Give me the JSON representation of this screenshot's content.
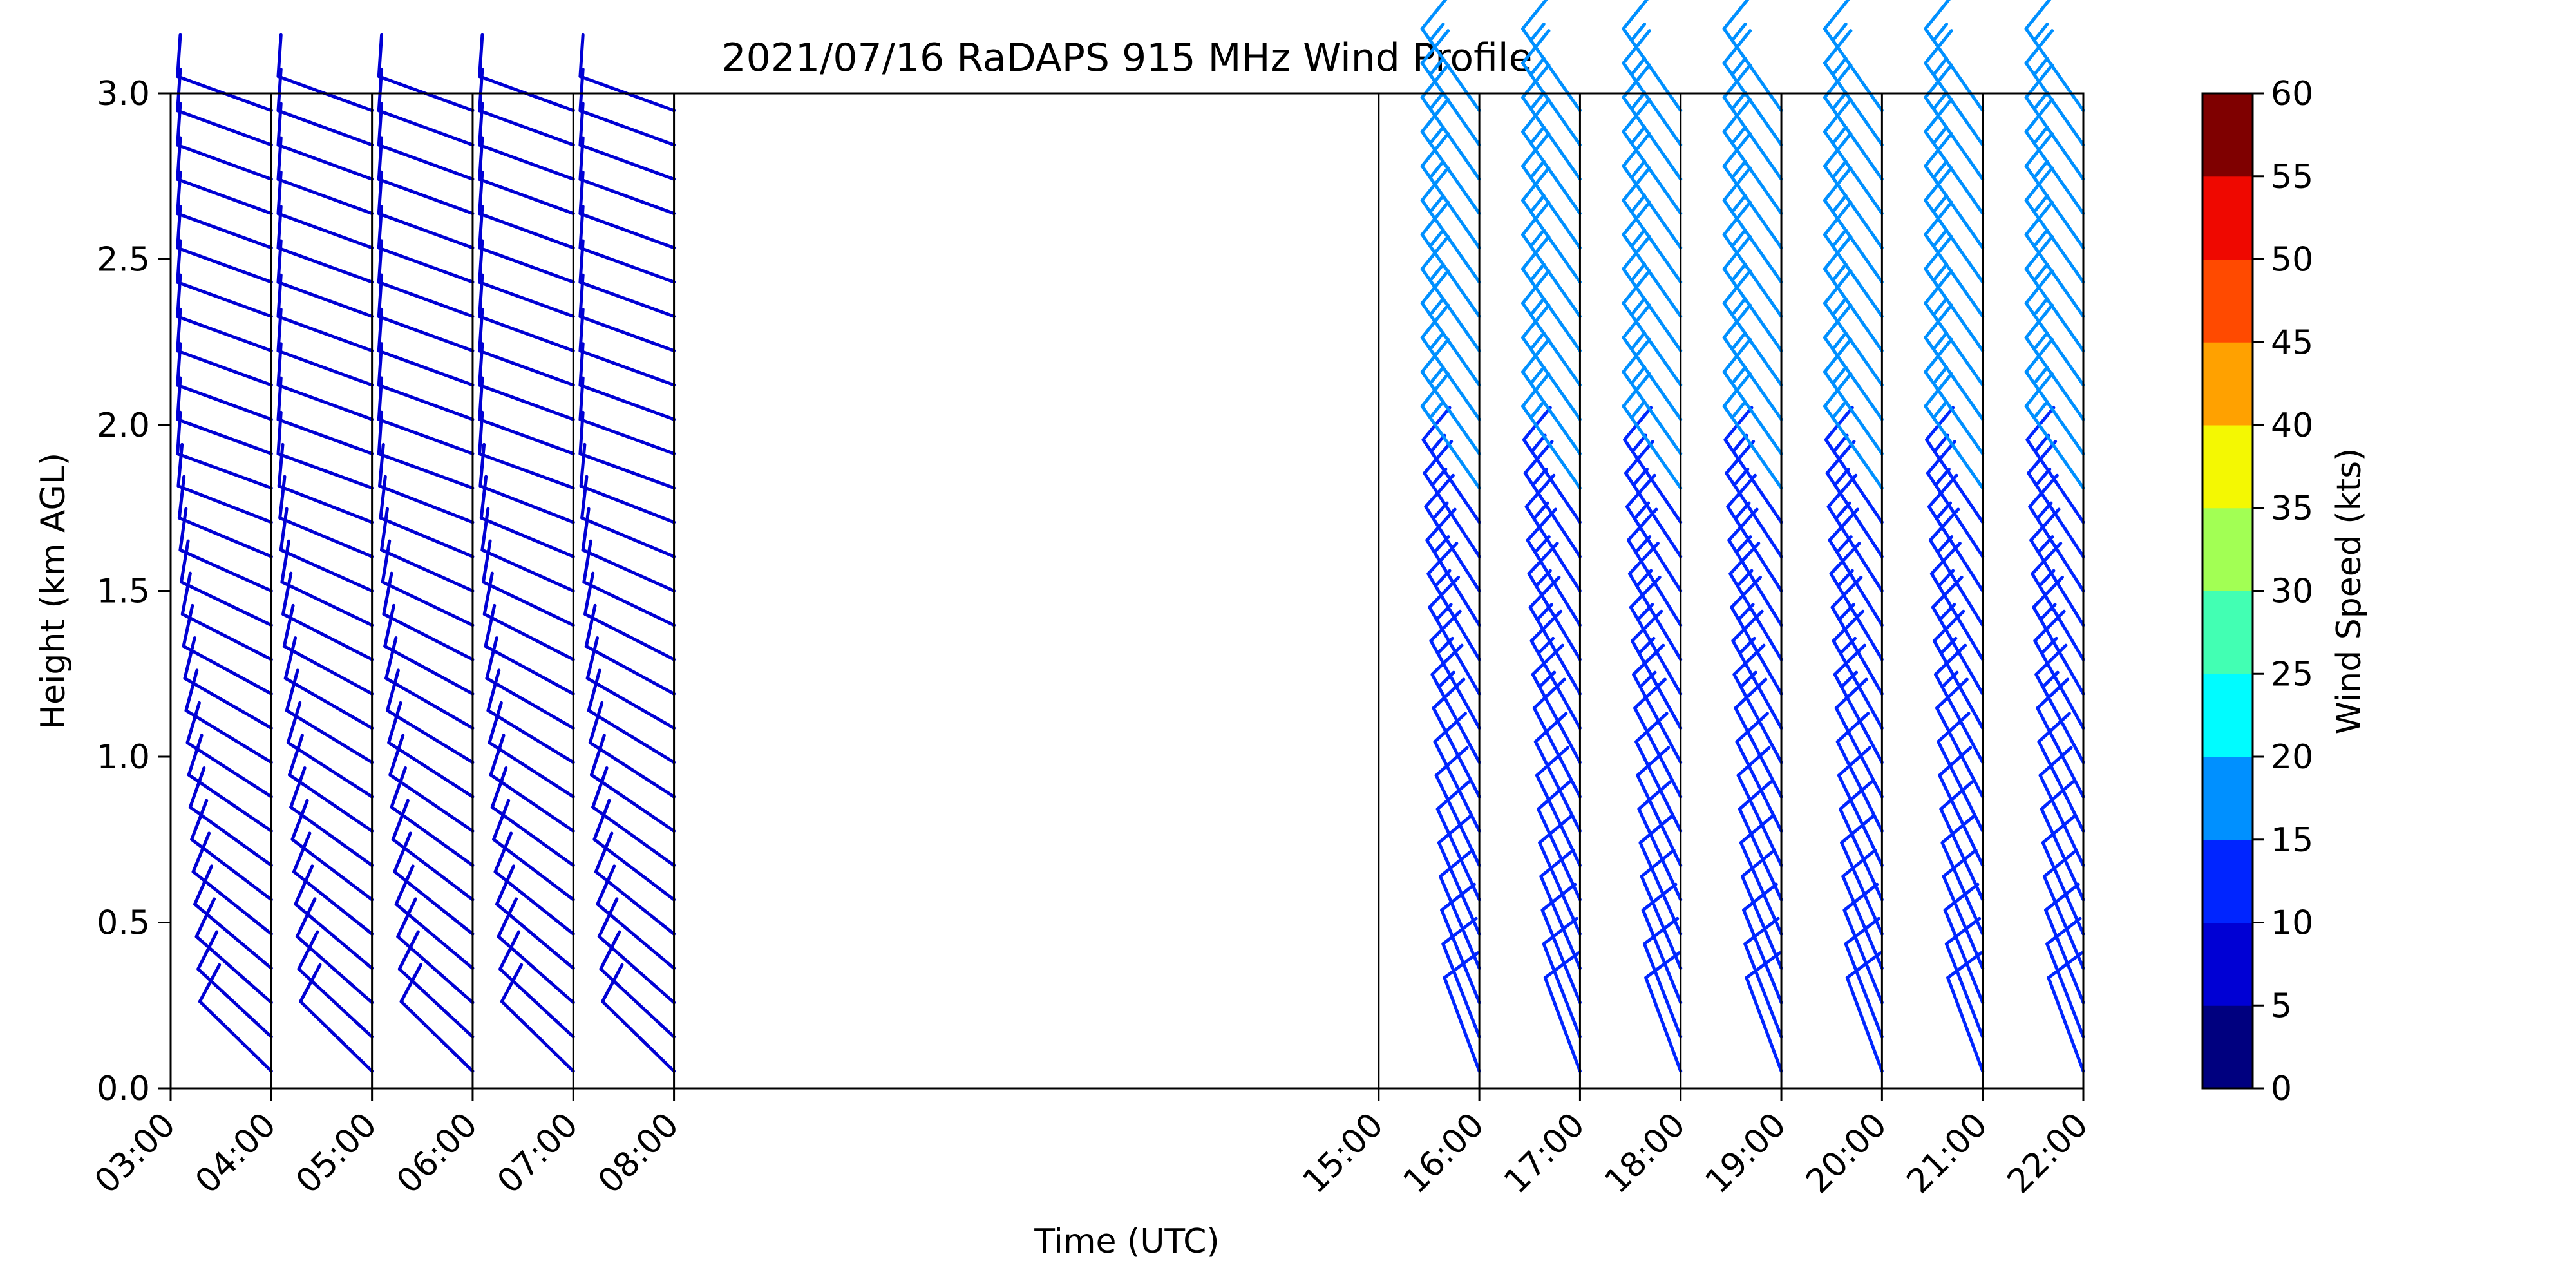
{
  "chart_data": {
    "type": "wind-barb-profile",
    "title": "2021/07/16 RaDAPS 915 MHz Wind Profile",
    "xlabel": "Time (UTC)",
    "ylabel": "Height (km AGL)",
    "ylim": [
      0.0,
      3.0
    ],
    "yticks": [
      "0.0",
      "0.5",
      "1.0",
      "1.5",
      "2.0",
      "2.5",
      "3.0"
    ],
    "xticks": [
      "03:00",
      "04:00",
      "05:00",
      "06:00",
      "07:00",
      "08:00",
      "15:00",
      "16:00",
      "17:00",
      "18:00",
      "19:00",
      "20:00",
      "21:00",
      "22:00"
    ],
    "colorbar": {
      "label": "Wind Speed (kts)",
      "ticks": [
        "0",
        "5",
        "10",
        "15",
        "20",
        "25",
        "30",
        "35",
        "40",
        "45",
        "50",
        "55",
        "60"
      ],
      "colors": [
        "#00007f",
        "#0000d4",
        "#0025ff",
        "#0090ff",
        "#00fcff",
        "#42ffb3",
        "#a2ff54",
        "#f4f802",
        "#ffa100",
        "#ff4a00",
        "#ef0800",
        "#7f0000"
      ]
    },
    "grid": false,
    "legend": "none",
    "periods": [
      {
        "start": "03:00",
        "end": "08:00",
        "profiles_per_hour": 1,
        "levels": 29,
        "low_level_wind": {
          "speed_kts": 10,
          "direction_deg": 225
        },
        "upper_level_wind": {
          "speed_kts": 9,
          "direction_deg": 250
        }
      },
      {
        "start": "15:00",
        "end": "22:00",
        "profiles_per_hour": 1,
        "levels": 29,
        "low_level_wind": {
          "speed_kts": 10,
          "direction_deg": 200
        },
        "upper_level_wind": {
          "speed_kts": 15,
          "direction_deg": 215
        }
      }
    ]
  }
}
